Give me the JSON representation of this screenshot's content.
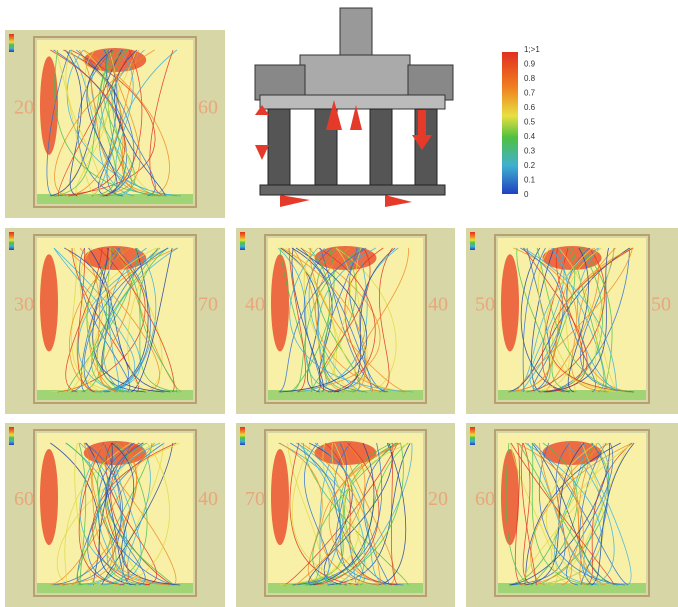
{
  "panels": [
    {
      "left_label": "20",
      "right_label": "60"
    },
    {
      "left_label": "30",
      "right_label": "70"
    },
    {
      "left_label": "40",
      "right_label": "40"
    },
    {
      "left_label": "50",
      "right_label": "50"
    },
    {
      "left_label": "60",
      "right_label": "40"
    },
    {
      "left_label": "70",
      "right_label": "20"
    },
    {
      "left_label": "60"
    }
  ],
  "colorbar": {
    "labels": [
      "1;>1",
      "0.9",
      "0.8",
      "0.7",
      "0.6",
      "0.5",
      "0.4",
      "0.3",
      "0.2",
      "0.1",
      "0"
    ]
  }
}
